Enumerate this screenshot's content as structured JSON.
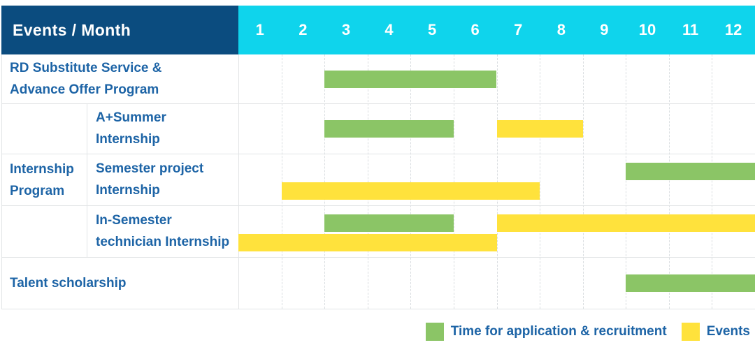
{
  "header": {
    "title": "Events / Month",
    "months": [
      "1",
      "2",
      "3",
      "4",
      "5",
      "6",
      "7",
      "8",
      "9",
      "10",
      "11",
      "12"
    ]
  },
  "colors": {
    "header_bg": "#0b4c7f",
    "months_bg": "#0fd4ec",
    "header_text": "#ffffff",
    "label_text": "#1d64a6",
    "application_bar": "#8bc566",
    "events_bar": "#ffe23c",
    "grid_line": "#e2e4e6"
  },
  "chart_data": {
    "type": "bar",
    "subtype": "gantt-timeline",
    "title": "Events / Month",
    "x_axis_label": "Month",
    "x_categories": [
      "1",
      "2",
      "3",
      "4",
      "5",
      "6",
      "7",
      "8",
      "9",
      "10",
      "11",
      "12"
    ],
    "x_range": [
      1,
      12
    ],
    "grid": "on",
    "legend_position": "bottom-right",
    "series": [
      {
        "key": "application",
        "name": "Time for application & recruitment",
        "color": "#8bc566"
      },
      {
        "key": "events",
        "name": "Events",
        "color": "#ffe23c"
      }
    ],
    "group_label": {
      "text": "Internship Program",
      "lines": [
        "Internship",
        "Program"
      ],
      "spans_rows": [
        2,
        3,
        4
      ]
    },
    "rows": [
      {
        "label": "RD Substitute Service & Advance Offer Program",
        "label_lines": [
          "RD Substitute Service &",
          "Advance Offer Program"
        ],
        "group": "",
        "lines": [
          [
            {
              "kind": "application",
              "start_month": 3,
              "end_month": 6
            }
          ]
        ]
      },
      {
        "label": "A+Summer Internship",
        "label_lines": [
          "A+Summer",
          "Internship"
        ],
        "group": "Internship Program",
        "lines": [
          [
            {
              "kind": "application",
              "start_month": 3,
              "end_month": 5
            },
            {
              "kind": "events",
              "start_month": 7,
              "end_month": 8
            }
          ]
        ]
      },
      {
        "label": "Semester project Internship",
        "label_lines": [
          "Semester project",
          "Internship"
        ],
        "group": "Internship Program",
        "lines": [
          [
            {
              "kind": "application",
              "start_month": 10,
              "end_month": 12
            }
          ],
          [
            {
              "kind": "events",
              "start_month": 2,
              "end_month": 7
            }
          ]
        ]
      },
      {
        "label": "In-Semester technician Internship",
        "label_lines": [
          "In-Semester",
          "technician Internship"
        ],
        "group": "Internship Program",
        "lines": [
          [
            {
              "kind": "application",
              "start_month": 3,
              "end_month": 5
            },
            {
              "kind": "events",
              "start_month": 7,
              "end_month": 12
            }
          ],
          [
            {
              "kind": "events",
              "start_month": 1,
              "end_month": 6
            }
          ]
        ]
      },
      {
        "label": "Talent scholarship",
        "label_lines": [
          "Talent scholarship"
        ],
        "group": "",
        "lines": [
          [
            {
              "kind": "application",
              "start_month": 10,
              "end_month": 12
            }
          ]
        ]
      }
    ]
  },
  "legend": {
    "application_label": "Time for application & recruitment",
    "events_label": "Events"
  }
}
